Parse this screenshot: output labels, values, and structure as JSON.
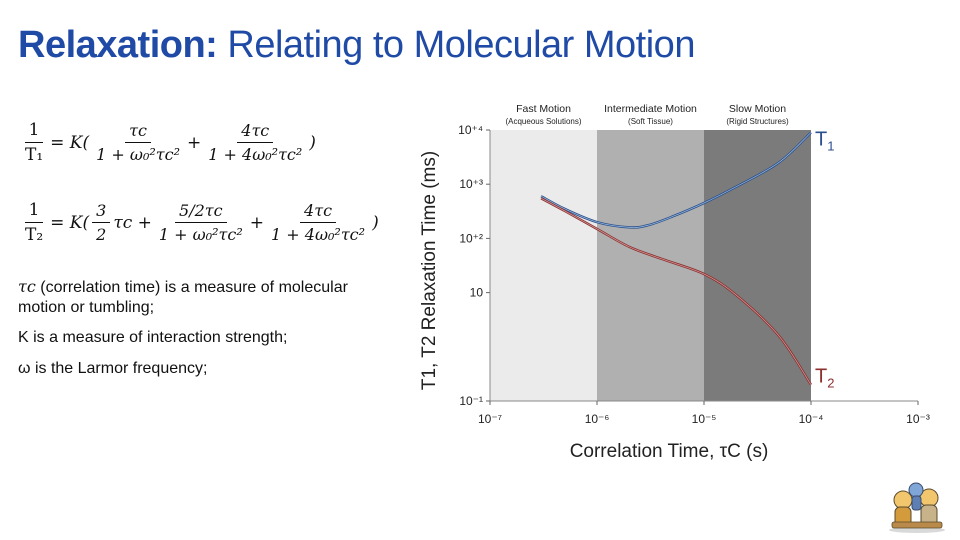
{
  "slide": {
    "title_bold": "Relaxation:",
    "title_rest": " Relating to Molecular Motion"
  },
  "equations": {
    "t1_lhs_num": "1",
    "t1_lhs_den": "T₁",
    "t1_eq": "= K(",
    "t1_term1_num": "τc",
    "t1_term1_den": "1 + ω₀²τc²",
    "plus": "+",
    "t1_term2_num": "4τc",
    "t1_term2_den": "1 + 4ω₀²τc²",
    "close": ")",
    "t2_lhs_num": "1",
    "t2_lhs_den": "T₂",
    "t2_eq": "= K(",
    "t2_term0_num": "3",
    "t2_term0_den": "2",
    "t2_term0_tail": "τc +",
    "t2_term1_num": "5/2τc",
    "t2_term1_den": "1 + ω₀²τc²",
    "t2_term2_num": "4τc",
    "t2_term2_den": "1 + 4ω₀²τc²"
  },
  "notes": {
    "tau_symbol": "τc",
    "tau_text": " (correlation time) is a measure of molecular motion or tumbling;",
    "k_text": "K is a measure of interaction strength;",
    "omega_text": "ω is the Larmor frequency;"
  },
  "chart_data": {
    "type": "line",
    "title": "",
    "xlabel": "Correlation Time, τC (s)",
    "ylabel": "T1, T2 Relaxation Time (ms)",
    "x_scale": "log",
    "y_scale": "log",
    "xlim": [
      1e-07,
      0.001
    ],
    "ylim": [
      0.1,
      10000
    ],
    "x_ticks": [
      {
        "value": 1e-07,
        "label": "10⁻⁷"
      },
      {
        "value": 1e-06,
        "label": "10⁻⁶"
      },
      {
        "value": 1e-05,
        "label": "10⁻⁵"
      },
      {
        "value": 0.0001,
        "label": "10⁻⁴"
      },
      {
        "value": 0.001,
        "label": "10⁻³"
      }
    ],
    "y_ticks": [
      {
        "value": 0.1,
        "label": "10⁻¹"
      },
      {
        "value": 10,
        "label": "10"
      },
      {
        "value": 100,
        "label": "10⁺²"
      },
      {
        "value": 1000,
        "label": "10⁺³"
      },
      {
        "value": 10000,
        "label": "10⁺⁴"
      }
    ],
    "regions": [
      {
        "name": "Fast Motion",
        "sub": "(Acqueous Solutions)",
        "x_start": 1e-07,
        "x_end": 1e-06,
        "color": "#ebebeb"
      },
      {
        "name": "Intermediate Motion",
        "sub": "(Soft Tissue)",
        "x_start": 1e-06,
        "x_end": 1e-05,
        "color": "#b0b0b0"
      },
      {
        "name": "Slow Motion",
        "sub": "(Rigid Structures)",
        "x_start": 1e-05,
        "x_end": 0.0001,
        "color": "#7b7b7b"
      }
    ],
    "series": [
      {
        "name": "T1",
        "label_main": "T",
        "label_sub": "1",
        "color": "#2c4f8c",
        "highlight": "#9ec1e0",
        "points": [
          [
            3e-07,
            600
          ],
          [
            5e-07,
            350
          ],
          [
            1e-06,
            200
          ],
          [
            2e-06,
            160
          ],
          [
            3e-06,
            175
          ],
          [
            5e-06,
            250
          ],
          [
            1e-05,
            450
          ],
          [
            2e-05,
            900
          ],
          [
            5e-05,
            2500
          ],
          [
            0.0001,
            9000
          ]
        ]
      },
      {
        "name": "T2",
        "label_main": "T",
        "label_sub": "2",
        "color": "#8b2f2f",
        "highlight": "#d8a3a3",
        "points": [
          [
            3e-07,
            550
          ],
          [
            5e-07,
            320
          ],
          [
            1e-06,
            150
          ],
          [
            2e-06,
            70
          ],
          [
            4e-06,
            42
          ],
          [
            1e-05,
            22
          ],
          [
            2e-05,
            9
          ],
          [
            5e-05,
            1.6
          ],
          [
            0.0001,
            0.2
          ]
        ]
      }
    ]
  }
}
